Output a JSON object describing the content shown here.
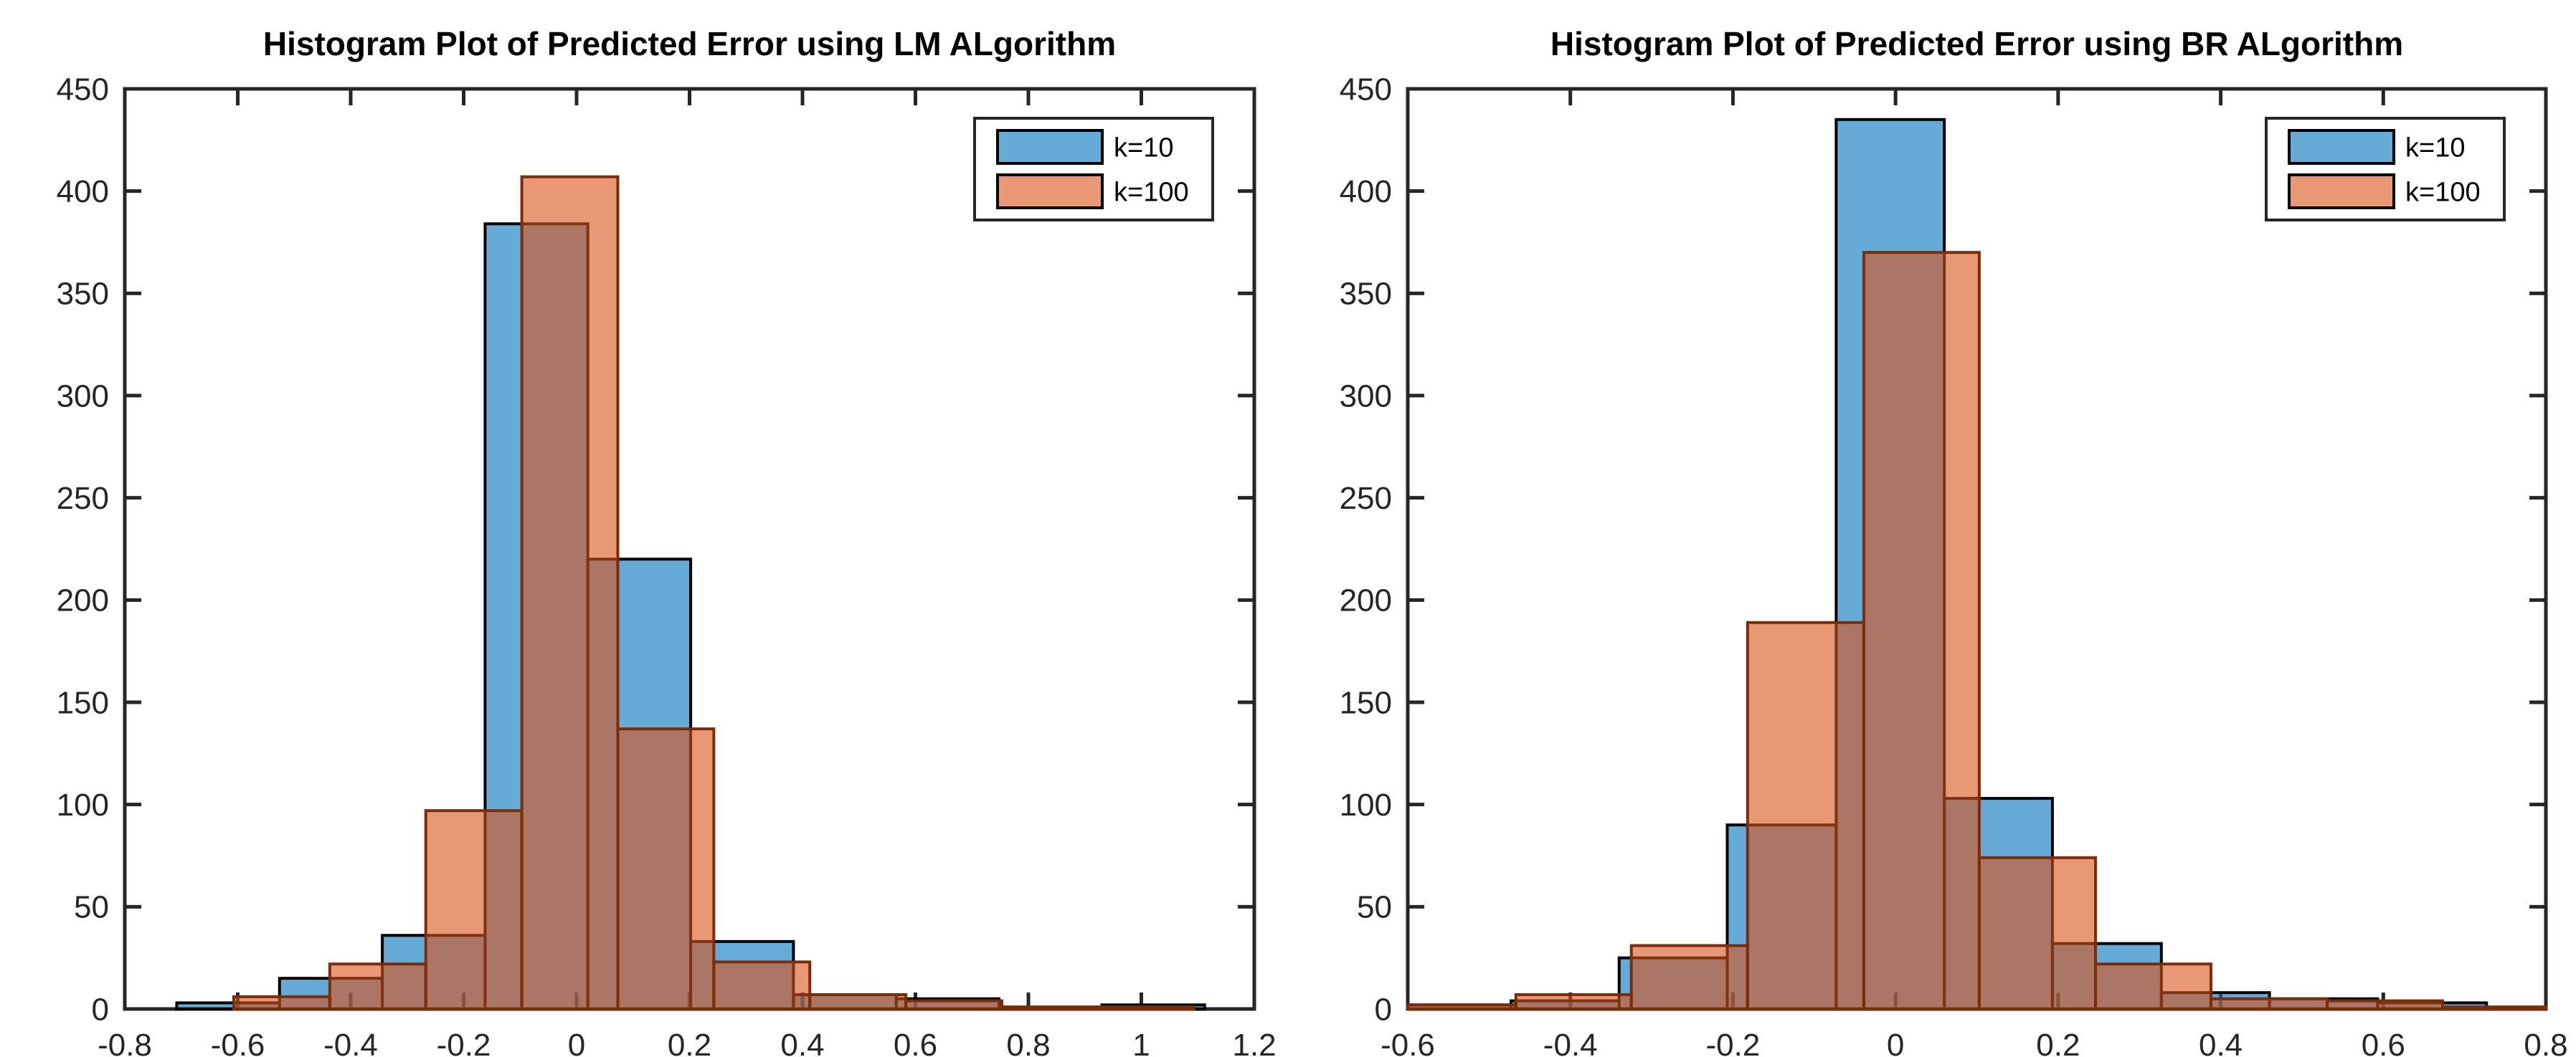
{
  "figure": {
    "background": "#ffffff"
  },
  "chart_data": [
    {
      "type": "histogram",
      "title": "Histogram Plot of Predicted Error using LM ALgorithm",
      "xlabel": "",
      "ylabel": "",
      "xlim": [
        -0.8,
        1.2
      ],
      "ylim": [
        0,
        450
      ],
      "xticks": [
        -0.8,
        -0.6,
        -0.4,
        -0.2,
        0,
        0.2,
        0.4,
        0.6,
        0.8,
        1,
        1.2
      ],
      "xtick_labels": [
        "-0.8",
        "-0.6",
        "-0.4",
        "-0.2",
        "0",
        "0.2",
        "0.4",
        "0.6",
        "0.8",
        "1",
        "1.2"
      ],
      "yticks": [
        0,
        50,
        100,
        150,
        200,
        250,
        300,
        350,
        400,
        450
      ],
      "ytick_labels": [
        "0",
        "50",
        "100",
        "150",
        "200",
        "250",
        "300",
        "350",
        "400",
        "450"
      ],
      "grid": "off",
      "legend": {
        "position": "northeast",
        "entries": [
          "k=10",
          "k=100"
        ]
      },
      "series": [
        {
          "name": "k=10",
          "face_color": "#0072BD",
          "face_alpha": 0.6,
          "edge_color": "#000000",
          "bin_edges": [
            -0.708,
            -0.526,
            -0.344,
            -0.162,
            0.02,
            0.202,
            0.384,
            0.566,
            0.748,
            0.93,
            1.112
          ],
          "counts": [
            3,
            15,
            36,
            384,
            220,
            33,
            7,
            5,
            0,
            2
          ]
        },
        {
          "name": "k=100",
          "face_color": "#D95319",
          "face_alpha": 0.6,
          "edge_color": "#7B2D09",
          "bin_edges": [
            -0.607,
            -0.437,
            -0.267,
            -0.097,
            0.073,
            0.243,
            0.413,
            0.583,
            0.753,
            0.923,
            1.093
          ],
          "counts": [
            6,
            22,
            97,
            407,
            137,
            23,
            7,
            4,
            1,
            1
          ]
        }
      ]
    },
    {
      "type": "histogram",
      "title": "Histogram Plot of Predicted Error using BR ALgorithm",
      "xlabel": "",
      "ylabel": "",
      "xlim": [
        -0.6,
        0.8
      ],
      "ylim": [
        0,
        450
      ],
      "xticks": [
        -0.6,
        -0.4,
        -0.2,
        0,
        0.2,
        0.4,
        0.6,
        0.8
      ],
      "xtick_labels": [
        "-0.6",
        "-0.4",
        "-0.2",
        "0",
        "0.2",
        "0.4",
        "0.6",
        "0.8"
      ],
      "yticks": [
        0,
        50,
        100,
        150,
        200,
        250,
        300,
        350,
        400,
        450
      ],
      "ytick_labels": [
        "0",
        "50",
        "100",
        "150",
        "200",
        "250",
        "300",
        "350",
        "400",
        "450"
      ],
      "grid": "off",
      "legend": {
        "position": "northeast",
        "entries": [
          "k=10",
          "k=100"
        ]
      },
      "series": [
        {
          "name": "k=10",
          "face_color": "#0072BD",
          "face_alpha": 0.6,
          "edge_color": "#000000",
          "bin_edges": [
            -0.607,
            -0.473,
            -0.34,
            -0.207,
            -0.073,
            0.06,
            0.193,
            0.327,
            0.46,
            0.593,
            0.727
          ],
          "counts": [
            2,
            4,
            25,
            90,
            435,
            103,
            32,
            8,
            5,
            3
          ]
        },
        {
          "name": "k=100",
          "face_color": "#D95319",
          "face_alpha": 0.6,
          "edge_color": "#7B2D09",
          "bin_edges": [
            -0.61,
            -0.467,
            -0.325,
            -0.182,
            -0.039,
            0.103,
            0.246,
            0.388,
            0.531,
            0.673,
            0.816
          ],
          "counts": [
            2,
            7,
            31,
            189,
            370,
            74,
            22,
            5,
            4,
            1
          ]
        }
      ]
    }
  ]
}
